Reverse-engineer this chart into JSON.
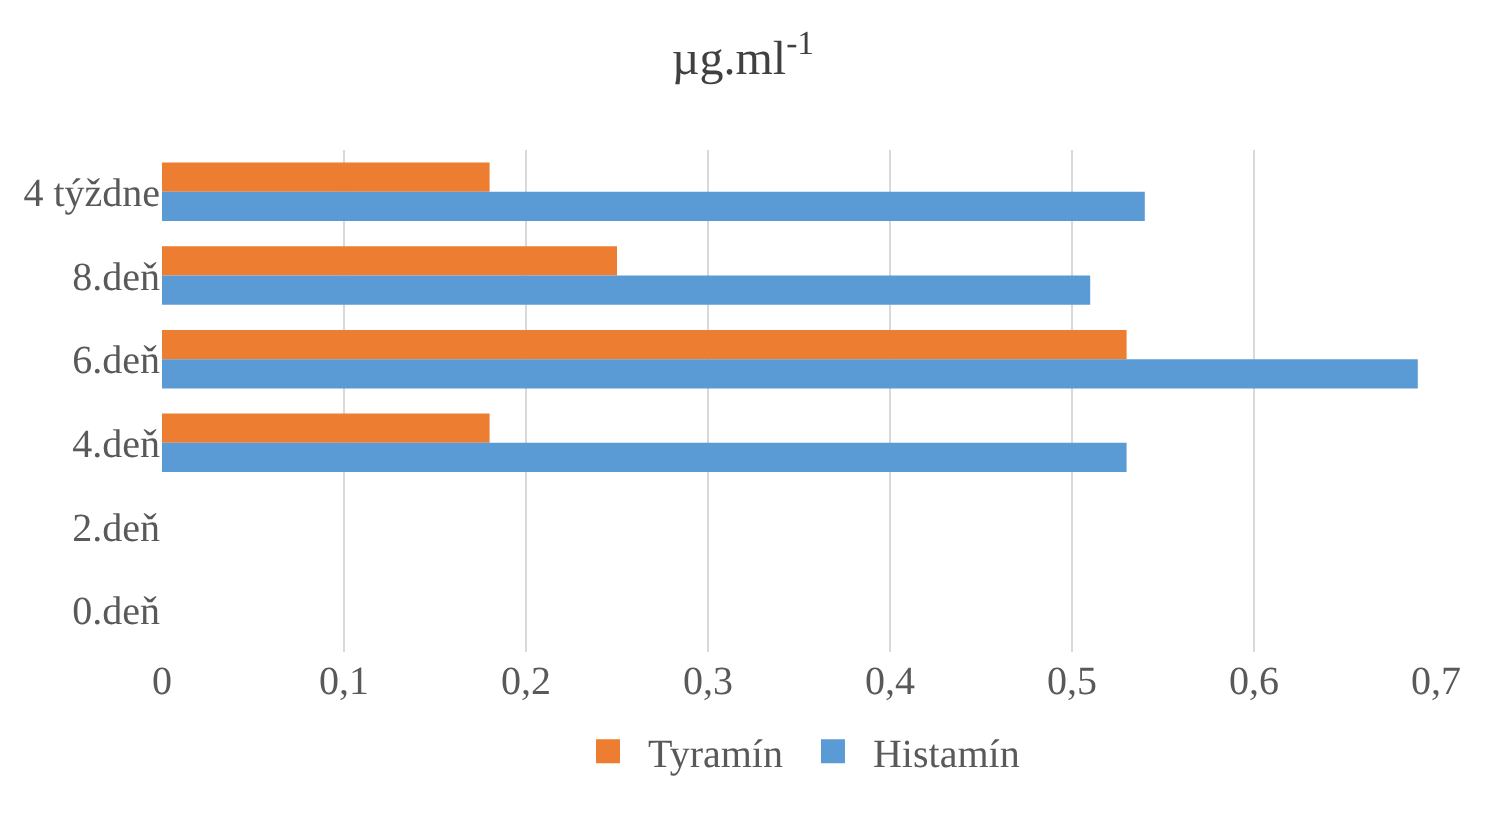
{
  "chart_data": {
    "type": "bar",
    "orientation": "horizontal",
    "title": "µg.ml$^{-1}$",
    "categories": [
      "4 týždne",
      "8.deň",
      "6.deň",
      "4.deň",
      "2.deň",
      "0.deň"
    ],
    "series": [
      {
        "name": "Tyramín",
        "color": "#ed7d31",
        "values": [
          0.18,
          0.25,
          0.53,
          0.18,
          0,
          0
        ]
      },
      {
        "name": "Histamín",
        "color": "#5b9bd5",
        "values": [
          0.54,
          0.51,
          0.69,
          0.53,
          0,
          0
        ]
      }
    ],
    "xlim": [
      0,
      0.7
    ],
    "xticks": [
      {
        "value": 0,
        "label": "0"
      },
      {
        "value": 0.1,
        "label": "0,1"
      },
      {
        "value": 0.2,
        "label": "0,2"
      },
      {
        "value": 0.3,
        "label": "0,3"
      },
      {
        "value": 0.4,
        "label": "0,4"
      },
      {
        "value": 0.5,
        "label": "0,5"
      },
      {
        "value": 0.6,
        "label": "0,6"
      },
      {
        "value": 0.7,
        "label": "0,7"
      }
    ],
    "grid": "x",
    "legend": "bottom"
  }
}
